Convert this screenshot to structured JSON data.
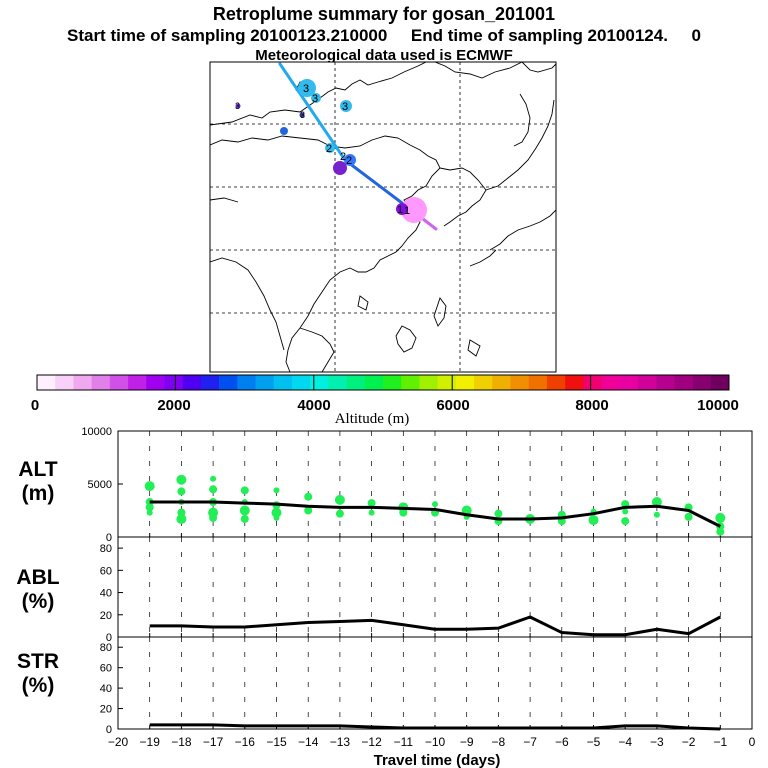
{
  "header": {
    "title": "Retroplume summary for gosan_201001",
    "sampling": "Start time of sampling 20100123.210000     End time of sampling 20100124.     0",
    "met": "Meteorological data used is ECMWF"
  },
  "colorbar": {
    "label": "Altitude (m)",
    "tick_labels": [
      "0",
      "2000",
      "4000",
      "6000",
      "8000",
      "10000"
    ],
    "colors": [
      "#fff0ff",
      "#f8d0f8",
      "#f0a8f0",
      "#e080e8",
      "#d050e8",
      "#c020e8",
      "#a000f0",
      "#8000f0",
      "#5000f0",
      "#2020f0",
      "#0050f0",
      "#0080f0",
      "#00a0f0",
      "#00c0f0",
      "#00d8f0",
      "#00f0e0",
      "#00f0b0",
      "#00f080",
      "#00f050",
      "#20f020",
      "#60f000",
      "#a0f000",
      "#d0f000",
      "#f0f000",
      "#f0d000",
      "#f0b000",
      "#f09000",
      "#f07000",
      "#f04000",
      "#f01010",
      "#f00070",
      "#f00098",
      "#e800a0",
      "#d00098",
      "#b80090",
      "#a00080",
      "#880070",
      "#700060"
    ],
    "dividers_m": [
      2000,
      4000,
      6000,
      8000
    ]
  },
  "map": {
    "plume_labels": [
      "3",
      "3",
      "3",
      "3",
      "3",
      "2",
      "2",
      "2",
      "1",
      "1"
    ],
    "dots": [
      {
        "label": "1",
        "color": "#ff99ff"
      },
      {
        "label": "1",
        "color": "#8010e0"
      },
      {
        "label": "2",
        "color": "#3377ff"
      },
      {
        "label": "2",
        "color": "#7722cc"
      },
      {
        "label": "2",
        "color": "#33bbee"
      },
      {
        "label": "3",
        "color": "#33bbee"
      },
      {
        "label": "3",
        "color": "#33bbee"
      },
      {
        "label": "3",
        "color": "#2266dd"
      }
    ]
  },
  "chart_data": [
    {
      "type": "line",
      "panel": "ALT",
      "ylabel_line1": "ALT",
      "ylabel_line2": "(m)",
      "ylim": [
        0,
        10000
      ],
      "y_ticks": [
        "0",
        "5000",
        "10000"
      ],
      "x": [
        -19,
        -18,
        -17,
        -16,
        -15,
        -14,
        -13,
        -12,
        -11,
        -10,
        -9,
        -8,
        -7,
        -6,
        -5,
        -4,
        -3,
        -2,
        -1
      ],
      "series": [
        {
          "name": "mean altitude",
          "values": [
            3300,
            3300,
            3300,
            3200,
            3100,
            2900,
            2800,
            2800,
            2700,
            2600,
            2100,
            1700,
            1700,
            1800,
            2200,
            2800,
            2900,
            2500,
            1000
          ]
        }
      ],
      "scatter": [
        {
          "x": -19,
          "y": 4800
        },
        {
          "x": -19,
          "y": 3300
        },
        {
          "x": -19,
          "y": 2800
        },
        {
          "x": -19,
          "y": 2300
        },
        {
          "x": -18,
          "y": 5400
        },
        {
          "x": -18,
          "y": 4300
        },
        {
          "x": -18,
          "y": 3300
        },
        {
          "x": -18,
          "y": 2300
        },
        {
          "x": -18,
          "y": 1700
        },
        {
          "x": -17,
          "y": 5500
        },
        {
          "x": -17,
          "y": 4500
        },
        {
          "x": -17,
          "y": 3300
        },
        {
          "x": -17,
          "y": 2300
        },
        {
          "x": -17,
          "y": 1800
        },
        {
          "x": -16,
          "y": 4400
        },
        {
          "x": -16,
          "y": 3300
        },
        {
          "x": -16,
          "y": 2500
        },
        {
          "x": -16,
          "y": 1700
        },
        {
          "x": -15,
          "y": 4400
        },
        {
          "x": -15,
          "y": 3000
        },
        {
          "x": -15,
          "y": 2300
        },
        {
          "x": -15,
          "y": 1800
        },
        {
          "x": -14,
          "y": 3800
        },
        {
          "x": -14,
          "y": 2500
        },
        {
          "x": -13,
          "y": 3500
        },
        {
          "x": -13,
          "y": 2200
        },
        {
          "x": -12,
          "y": 3200
        },
        {
          "x": -12,
          "y": 2300
        },
        {
          "x": -11,
          "y": 2800
        },
        {
          "x": -11,
          "y": 2300
        },
        {
          "x": -10,
          "y": 3100
        },
        {
          "x": -10,
          "y": 2300
        },
        {
          "x": -9,
          "y": 2500
        },
        {
          "x": -9,
          "y": 1900
        },
        {
          "x": -8,
          "y": 2200
        },
        {
          "x": -8,
          "y": 1500
        },
        {
          "x": -7,
          "y": 1700
        },
        {
          "x": -6,
          "y": 2100
        },
        {
          "x": -6,
          "y": 1500
        },
        {
          "x": -5,
          "y": 2400
        },
        {
          "x": -5,
          "y": 1600
        },
        {
          "x": -4,
          "y": 3100
        },
        {
          "x": -4,
          "y": 2400
        },
        {
          "x": -4,
          "y": 1500
        },
        {
          "x": -3,
          "y": 3300
        },
        {
          "x": -3,
          "y": 2100
        },
        {
          "x": -2,
          "y": 2800
        },
        {
          "x": -2,
          "y": 1900
        },
        {
          "x": -1,
          "y": 1800
        },
        {
          "x": -1,
          "y": 1000
        },
        {
          "x": -1,
          "y": 500
        }
      ],
      "scatter_color": "#22ee55"
    },
    {
      "type": "line",
      "panel": "ABL",
      "ylabel_line1": "ABL",
      "ylabel_line2": "(%)",
      "ylim": [
        0,
        90
      ],
      "y_ticks": [
        "0",
        "20",
        "40",
        "60",
        "80"
      ],
      "x": [
        -19,
        -18,
        -17,
        -16,
        -15,
        -14,
        -13,
        -12,
        -11,
        -10,
        -9,
        -8,
        -7,
        -6,
        -5,
        -4,
        -3,
        -2,
        -1
      ],
      "series": [
        {
          "name": "ABL fraction",
          "values": [
            10,
            10,
            9,
            9,
            11,
            13,
            14,
            15,
            11,
            7,
            7,
            8,
            18,
            4,
            2,
            2,
            7,
            3,
            18
          ]
        }
      ]
    },
    {
      "type": "line",
      "panel": "STR",
      "ylabel_line1": "STR",
      "ylabel_line2": "(%)",
      "ylim": [
        0,
        90
      ],
      "y_ticks": [
        "0",
        "20",
        "40",
        "60",
        "80"
      ],
      "x": [
        -19,
        -18,
        -17,
        -16,
        -15,
        -14,
        -13,
        -12,
        -11,
        -10,
        -9,
        -8,
        -7,
        -6,
        -5,
        -4,
        -3,
        -2,
        -1
      ],
      "series": [
        {
          "name": "stratospheric fraction",
          "values": [
            4,
            4,
            4,
            3,
            3,
            3,
            3,
            2,
            1,
            1,
            1,
            1,
            1,
            1,
            1,
            3,
            3,
            1,
            0
          ]
        }
      ]
    },
    {
      "type": "axis",
      "xlabel": "Travel time (days)",
      "x_ticks": [
        "−20",
        "−19",
        "−18",
        "−17",
        "−16",
        "−15",
        "−14",
        "−13",
        "−12",
        "−11",
        "−10",
        "−9",
        "−8",
        "−7",
        "−6",
        "−5",
        "−4",
        "−3",
        "−2",
        "−1",
        "0"
      ],
      "xlim": [
        -20,
        0
      ]
    }
  ]
}
